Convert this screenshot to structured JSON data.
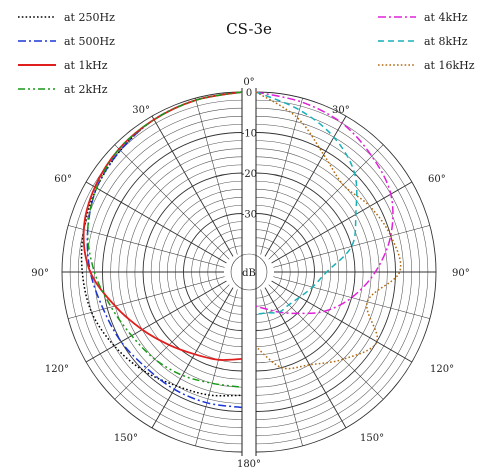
{
  "chart_data": {
    "type": "polar",
    "title": "CS-3e",
    "radial_unit": "dB",
    "radial_range": [
      -40,
      0
    ],
    "radial_ticks": [
      0,
      -10,
      -20,
      -30
    ],
    "angle_ticks": [
      "0°",
      "30°",
      "60°",
      "90°",
      "120°",
      "150°",
      "180°"
    ],
    "angles_deg": [
      0,
      15,
      30,
      45,
      60,
      75,
      90,
      105,
      120,
      135,
      150,
      165,
      180
    ],
    "grid": true,
    "legend_left": "top-left",
    "legend_right": "top-right",
    "left_half_series": [
      {
        "name": "at 250Hz",
        "color": "#000000",
        "dash": "dotted",
        "values": [
          0,
          -0.5,
          -1,
          -2,
          -3,
          -4,
          -5,
          -6,
          -8,
          -10,
          -12,
          -13,
          -14
        ]
      },
      {
        "name": "at 500Hz",
        "color": "#1a35d6",
        "dash": "dashdot",
        "values": [
          0,
          -0.5,
          -1,
          -2,
          -3,
          -5,
          -7,
          -9,
          -10,
          -11,
          -11,
          -11,
          -11
        ]
      },
      {
        "name": "at 1kHz",
        "color": "#e01e1e",
        "dash": "solid",
        "values": [
          0,
          -0.5,
          -1,
          -1.5,
          -2.5,
          -4,
          -7,
          -12,
          -16,
          -19,
          -21,
          -22,
          -23
        ]
      },
      {
        "name": "at 2kHz",
        "color": "#189918",
        "dash": "dashdotdot",
        "values": [
          0,
          -0.5,
          -1,
          -1.5,
          -3,
          -5,
          -8,
          -11,
          -13,
          -14,
          -15,
          -16,
          -16
        ]
      }
    ],
    "right_half_series": [
      {
        "name": "at 4kHz",
        "color": "#e020d8",
        "dash": "dashdot",
        "values": [
          0,
          -1,
          -2,
          -4,
          -6,
          -10,
          -15,
          -20,
          -25,
          -30,
          -33,
          -35,
          -36
        ]
      },
      {
        "name": "at 8kHz",
        "color": "#18b0b8",
        "dash": "dashed",
        "values": [
          0,
          -3,
          -6,
          -10,
          -16,
          -20,
          -27,
          -30,
          -32,
          -33,
          -33,
          -34,
          -34
        ]
      },
      {
        "name": "at 16kHz",
        "color": "#b06a10",
        "dash": "dotted",
        "values": [
          0,
          -5,
          -11,
          -14,
          -12,
          -10,
          -9,
          -16,
          -10,
          -14,
          -18,
          -20,
          -26
        ]
      }
    ]
  }
}
